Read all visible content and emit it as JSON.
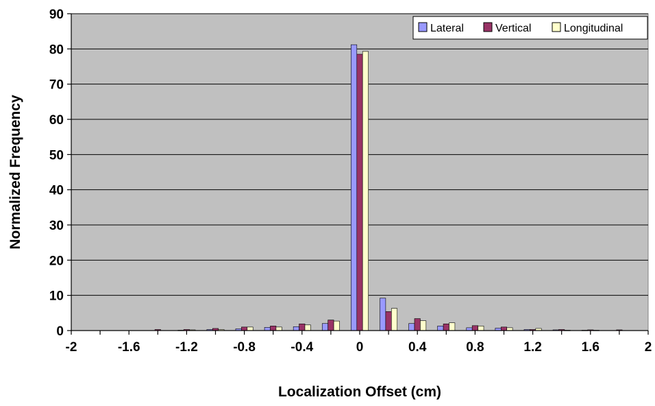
{
  "chart_data": {
    "type": "bar",
    "title": "",
    "xlabel": "Localization Offset (cm)",
    "ylabel": "Normalized Frequency",
    "xlim": [
      -2,
      2
    ],
    "ylim": [
      0,
      90
    ],
    "x_ticks": [
      -2,
      -1.6,
      -1.2,
      -0.8,
      -0.4,
      0,
      0.4,
      0.8,
      1.2,
      1.6,
      2
    ],
    "x_tick_labels": [
      "-2",
      "-1.6",
      "-1.2",
      "-0.8",
      "-0.4",
      "0",
      "0.4",
      "0.8",
      "1.2",
      "1.6",
      "2"
    ],
    "y_ticks": [
      0,
      10,
      20,
      30,
      40,
      50,
      60,
      70,
      80,
      90
    ],
    "y_tick_labels": [
      "0",
      "10",
      "20",
      "30",
      "40",
      "50",
      "60",
      "70",
      "80",
      "90"
    ],
    "grid": true,
    "legend_position": "top-right",
    "bin_width": 0.2,
    "x": [
      -2,
      -1.8,
      -1.6,
      -1.4,
      -1.2,
      -1.0,
      -0.8,
      -0.6,
      -0.4,
      -0.2,
      0,
      0.2,
      0.4,
      0.6,
      0.8,
      1.0,
      1.2,
      1.4,
      1.6,
      1.8
    ],
    "series": [
      {
        "name": "Lateral",
        "color": "#9999ff",
        "values": [
          0,
          0,
          0,
          0,
          0.1,
          0.3,
          0.5,
          0.9,
          1.1,
          2.0,
          81.2,
          9.2,
          2.0,
          1.3,
          0.8,
          0.7,
          0.3,
          0.2,
          0.1,
          0
        ]
      },
      {
        "name": "Vertical",
        "color": "#993366",
        "values": [
          0,
          0,
          0,
          0.3,
          0.3,
          0.6,
          1.0,
          1.3,
          1.9,
          3.0,
          78.5,
          5.4,
          3.4,
          1.9,
          1.4,
          1.0,
          0.3,
          0.3,
          0.2,
          0.2
        ]
      },
      {
        "name": "Longitudinal",
        "color": "#ffffcc",
        "values": [
          0,
          0,
          0,
          0,
          0.2,
          0.3,
          1.0,
          1.0,
          1.6,
          2.7,
          79.3,
          6.3,
          2.8,
          2.2,
          1.3,
          0.8,
          0.6,
          0.1,
          0.1,
          0
        ]
      }
    ]
  }
}
